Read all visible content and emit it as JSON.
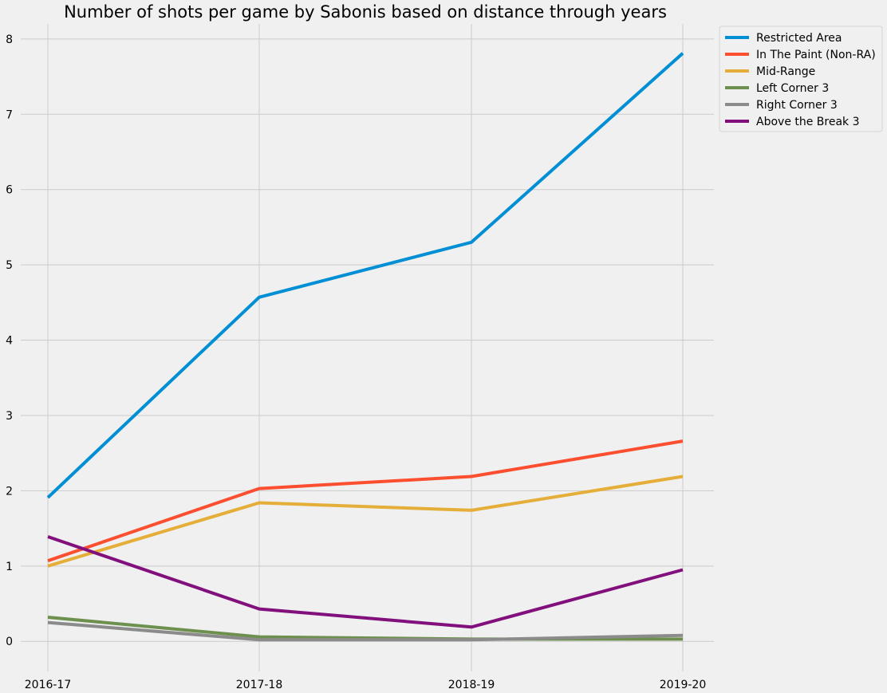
{
  "chart_data": {
    "type": "line",
    "title": "Number of shots per game by Sabonis based on distance through years",
    "xlabel": "",
    "ylabel": "",
    "categories": [
      "2016-17",
      "2017-18",
      "2018-19",
      "2019-20"
    ],
    "ylim": [
      -0.4,
      8.2
    ],
    "yticks": [
      "0",
      "1",
      "2",
      "3",
      "4",
      "5",
      "6",
      "7",
      "8"
    ],
    "grid": true,
    "legend_position": "outside-top-right",
    "series": [
      {
        "name": "Restricted Area",
        "color": "#008fd5",
        "values": [
          1.91,
          4.57,
          5.3,
          7.81
        ]
      },
      {
        "name": "In The Paint (Non-RA)",
        "color": "#fc4f30",
        "values": [
          1.07,
          2.03,
          2.19,
          2.66
        ]
      },
      {
        "name": "Mid-Range",
        "color": "#e5ae38",
        "values": [
          1.0,
          1.84,
          1.74,
          2.19
        ]
      },
      {
        "name": "Left Corner 3",
        "color": "#6d904f",
        "values": [
          0.32,
          0.06,
          0.03,
          0.03
        ]
      },
      {
        "name": "Right Corner 3",
        "color": "#8b8b8b",
        "values": [
          0.25,
          0.02,
          0.02,
          0.08
        ]
      },
      {
        "name": "Above the Break 3",
        "color": "#810f7c",
        "values": [
          1.39,
          0.43,
          0.19,
          0.95
        ]
      }
    ]
  }
}
